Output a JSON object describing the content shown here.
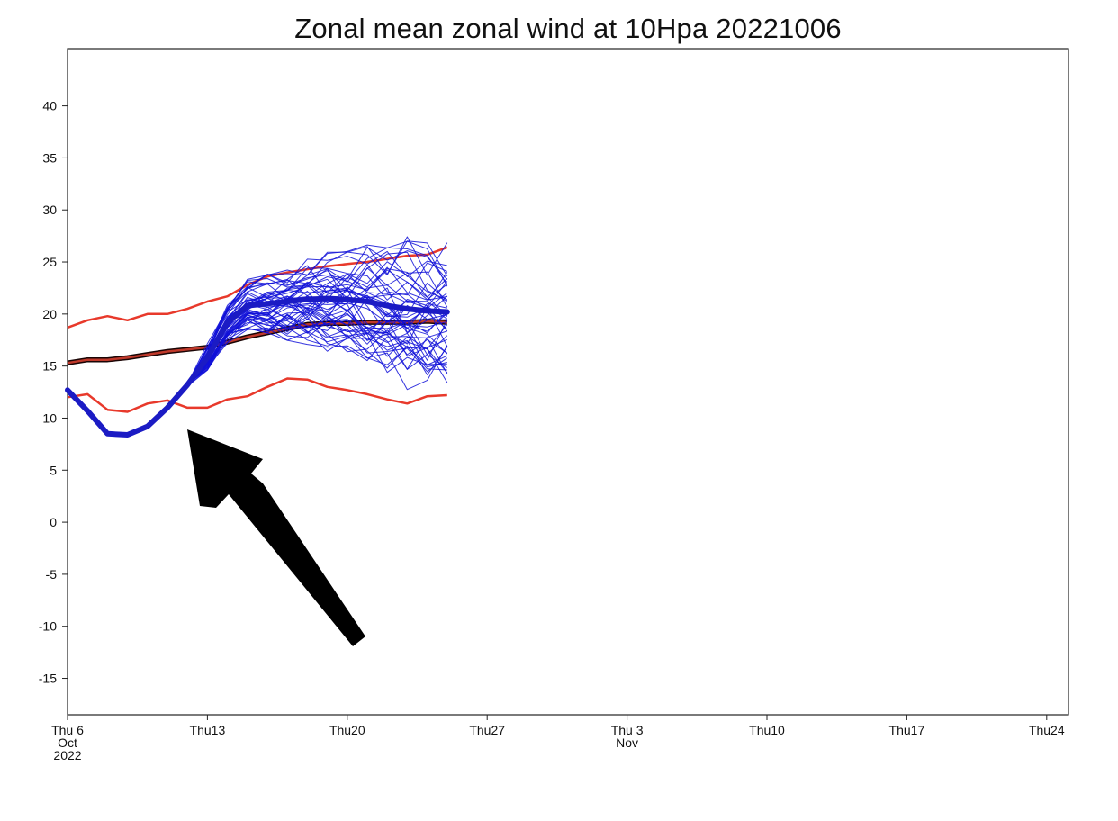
{
  "chart_data": {
    "type": "line",
    "title": "Zonal mean zonal wind at 10Hpa 20221006",
    "xlabel": "",
    "ylabel": "",
    "ylim": [
      -18.5,
      45.5
    ],
    "yticks": [
      40,
      35,
      30,
      25,
      20,
      15,
      10,
      5,
      0,
      -5,
      -10,
      -15
    ],
    "x_range_days": [
      0,
      50
    ],
    "x_start_date": "2022-10-06",
    "xticks": [
      {
        "day": 0,
        "lines": [
          "Thu 6",
          "Oct",
          "2022"
        ]
      },
      {
        "day": 7,
        "lines": [
          "Thu13"
        ]
      },
      {
        "day": 14,
        "lines": [
          "Thu20"
        ]
      },
      {
        "day": 21,
        "lines": [
          "Thu27"
        ]
      },
      {
        "day": 28,
        "lines": [
          "Thu 3",
          "Nov"
        ]
      },
      {
        "day": 35,
        "lines": [
          "Thu10"
        ]
      },
      {
        "day": 42,
        "lines": [
          "Thu17"
        ]
      },
      {
        "day": 49,
        "lines": [
          "Thu24"
        ]
      }
    ],
    "series": [
      {
        "role": "climatology-mean",
        "color": "#8b1a10",
        "x": [
          0,
          1,
          2,
          3,
          4,
          5,
          6,
          7,
          8,
          9,
          10,
          11,
          12,
          13,
          14,
          15,
          16,
          17,
          18,
          19
        ],
        "y": [
          15.3,
          15.6,
          15.6,
          15.8,
          16.1,
          16.4,
          16.6,
          16.8,
          17.3,
          17.8,
          18.2,
          18.6,
          19.0,
          19.1,
          19.1,
          19.2,
          19.2,
          19.2,
          19.3,
          19.2
        ]
      },
      {
        "role": "climatology-upper",
        "color": "#e8392b",
        "x": [
          0,
          1,
          2,
          3,
          4,
          5,
          6,
          7,
          8,
          9,
          10,
          11,
          12,
          13,
          14,
          15,
          16,
          17,
          18,
          19
        ],
        "y": [
          18.7,
          19.4,
          19.8,
          19.4,
          20.0,
          20.0,
          20.5,
          21.2,
          21.7,
          22.8,
          23.6,
          24.0,
          24.3,
          24.6,
          24.8,
          25.0,
          25.3,
          25.6,
          25.7,
          26.4
        ]
      },
      {
        "role": "climatology-lower",
        "color": "#e8392b",
        "x": [
          0,
          1,
          2,
          3,
          4,
          5,
          6,
          7,
          8,
          9,
          10,
          11,
          12,
          13,
          14,
          15,
          16,
          17,
          18,
          19
        ],
        "y": [
          12.0,
          12.3,
          10.8,
          10.6,
          11.4,
          11.7,
          11.0,
          11.0,
          11.8,
          12.1,
          13.0,
          13.8,
          13.7,
          13.0,
          12.7,
          12.3,
          11.8,
          11.4,
          12.1,
          12.2
        ]
      },
      {
        "role": "ensemble-mean",
        "color": "#1b1bc4",
        "x": [
          0,
          1,
          2,
          3,
          4,
          5,
          6,
          7,
          8,
          9,
          10,
          11,
          12,
          13,
          14,
          15,
          16,
          17,
          18,
          19
        ],
        "y": [
          12.7,
          10.7,
          8.5,
          8.4,
          9.2,
          11.0,
          13.2,
          15.8,
          19.2,
          20.8,
          21.0,
          21.2,
          21.4,
          21.5,
          21.4,
          21.2,
          20.8,
          20.5,
          20.3,
          20.2
        ]
      }
    ],
    "ensemble": {
      "color": "#1010d8",
      "members": 50,
      "x_start": 0,
      "x_end": 19,
      "spread_low": 14,
      "spread_high": 27
    },
    "annotation": {
      "type": "arrow",
      "color": "#000000",
      "points_to": "ensemble curve near Oct 12"
    }
  }
}
